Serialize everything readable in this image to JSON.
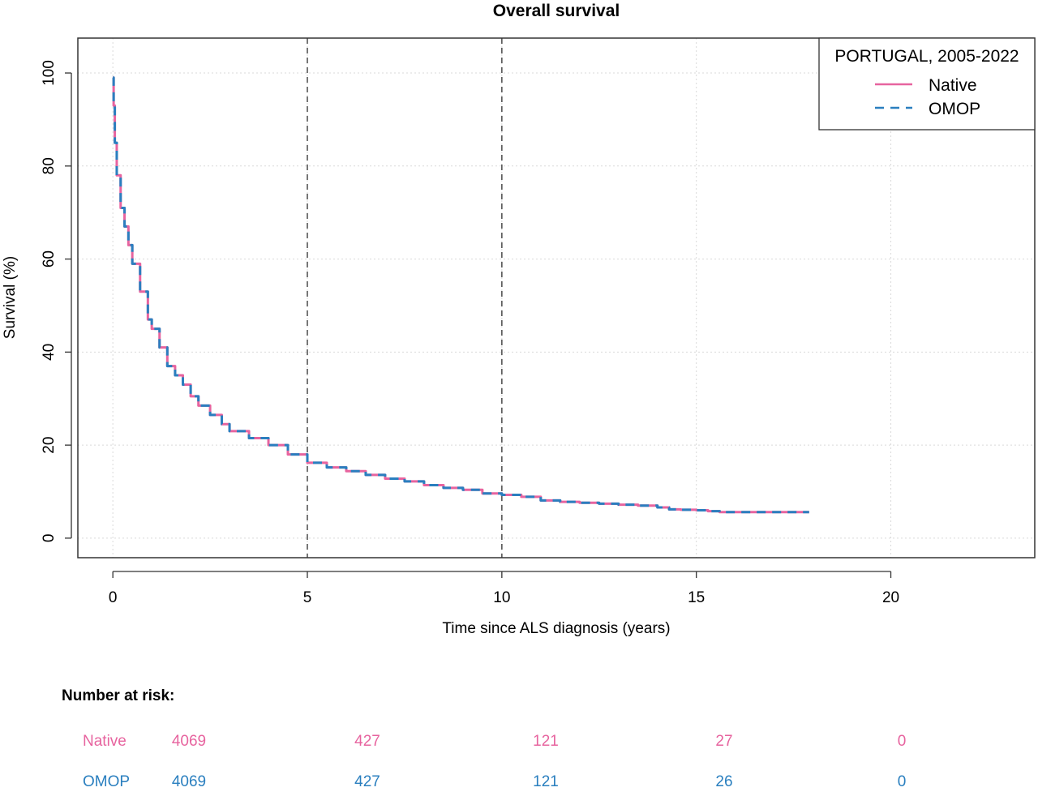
{
  "chart_data": {
    "type": "line",
    "title": "Overall survival",
    "xlabel": "Time since ALS diagnosis (years)",
    "ylabel": "Survival (%)",
    "xlim": [
      -0.9,
      23.7
    ],
    "ylim": [
      -4.2,
      107.5
    ],
    "xticks": [
      0,
      5,
      10,
      15,
      20
    ],
    "yticks": [
      0,
      20,
      40,
      60,
      80,
      100
    ],
    "grid": true,
    "reference_lines_x": [
      5,
      10
    ],
    "legend": {
      "title": "PORTUGAL, 2005-2022",
      "position": "top-right"
    },
    "series": [
      {
        "name": "Native",
        "color": "#e7649f",
        "dash": "solid",
        "x": [
          0,
          0.02,
          0.05,
          0.1,
          0.2,
          0.3,
          0.4,
          0.5,
          0.7,
          0.9,
          1.0,
          1.2,
          1.4,
          1.6,
          1.8,
          2.0,
          2.2,
          2.5,
          2.8,
          3.0,
          3.5,
          4.0,
          4.5,
          5.0,
          5.5,
          6.0,
          6.5,
          7.0,
          7.5,
          8.0,
          8.5,
          9.0,
          9.5,
          10.0,
          10.5,
          11.0,
          11.5,
          12.0,
          12.5,
          13.0,
          13.5,
          14.0,
          14.3,
          14.6,
          15.0,
          15.3,
          15.6,
          16.0,
          16.5,
          17.0,
          17.5,
          17.9
        ],
        "y": [
          99,
          93,
          85,
          78,
          71,
          67,
          63,
          59,
          53,
          47,
          45,
          41,
          37,
          35,
          33,
          30.5,
          28.5,
          26.5,
          24.5,
          23,
          21.5,
          20,
          18,
          16.2,
          15.2,
          14.4,
          13.6,
          12.8,
          12.2,
          11.4,
          10.8,
          10.4,
          9.6,
          9.3,
          8.9,
          8.1,
          7.8,
          7.6,
          7.4,
          7.2,
          7.0,
          6.6,
          6.2,
          6.1,
          6.0,
          5.8,
          5.6,
          5.6,
          5.6,
          5.6,
          5.6,
          5.6
        ]
      },
      {
        "name": "OMOP",
        "color": "#2a7fbf",
        "dash": "dashed",
        "x": [
          0,
          0.02,
          0.05,
          0.1,
          0.2,
          0.3,
          0.4,
          0.5,
          0.7,
          0.9,
          1.0,
          1.2,
          1.4,
          1.6,
          1.8,
          2.0,
          2.2,
          2.5,
          2.8,
          3.0,
          3.5,
          4.0,
          4.5,
          5.0,
          5.5,
          6.0,
          6.5,
          7.0,
          7.5,
          8.0,
          8.5,
          9.0,
          9.5,
          10.0,
          10.5,
          11.0,
          11.5,
          12.0,
          12.5,
          13.0,
          13.5,
          14.0,
          14.3,
          14.6,
          15.0,
          15.3,
          15.6,
          16.0,
          16.5,
          17.0,
          17.5,
          17.9
        ],
        "y": [
          99,
          93,
          85,
          78,
          71,
          67,
          63,
          59,
          53,
          47,
          45,
          41,
          37,
          35,
          33,
          30.5,
          28.5,
          26.5,
          24.5,
          23,
          21.5,
          20,
          18,
          16.2,
          15.2,
          14.4,
          13.6,
          12.8,
          12.2,
          11.4,
          10.8,
          10.4,
          9.6,
          9.3,
          8.9,
          8.1,
          7.8,
          7.6,
          7.4,
          7.2,
          7.0,
          6.6,
          6.2,
          6.1,
          6.0,
          5.8,
          5.6,
          5.6,
          5.6,
          5.6,
          5.6,
          5.6
        ]
      }
    ],
    "risk_table": {
      "heading": "Number at risk:",
      "times": [
        0,
        5,
        10,
        15,
        20
      ],
      "rows": [
        {
          "label": "Native",
          "color": "#e7649f",
          "counts": [
            "4069",
            "427",
            "121",
            "27",
            "0"
          ]
        },
        {
          "label": "OMOP",
          "color": "#2a7fbf",
          "counts": [
            "4069",
            "427",
            "121",
            "26",
            "0"
          ]
        }
      ]
    }
  }
}
